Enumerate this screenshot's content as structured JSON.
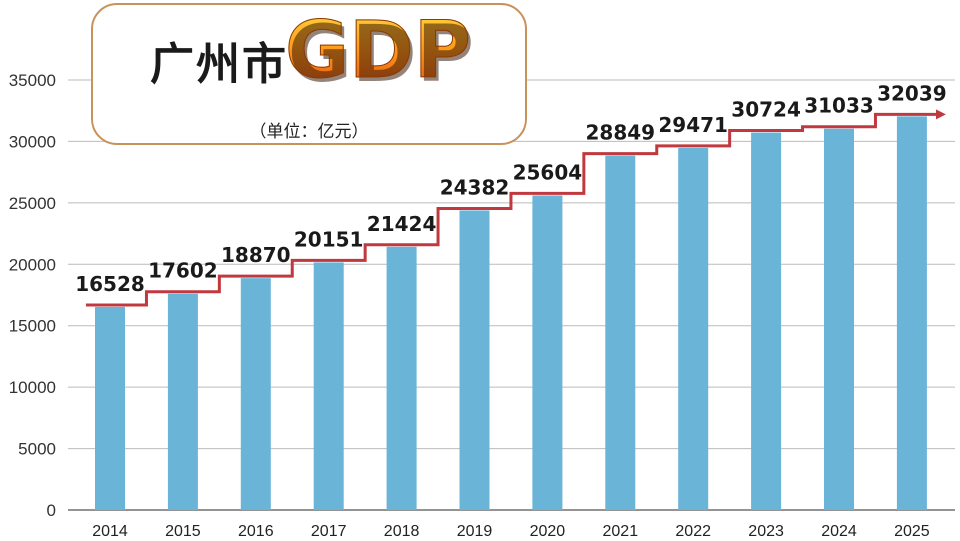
{
  "title": {
    "main": "广州市",
    "highlight": "GDP",
    "unit": "（单位：亿元）"
  },
  "colors": {
    "bar": "#6ab4d8",
    "step_line": "#c0393f",
    "title_border": "#c8925a"
  },
  "chart_data": {
    "type": "bar",
    "title": "广州市GDP",
    "unit": "亿元",
    "categories": [
      "2014",
      "2015",
      "2016",
      "2017",
      "2018",
      "2019",
      "2020",
      "2021",
      "2022",
      "2023",
      "2024",
      "2025"
    ],
    "values": [
      16528,
      17602,
      18870,
      20151,
      21424,
      24382,
      25604,
      28849,
      29471,
      30724,
      31033,
      32039
    ],
    "data_labels": [
      "16528",
      "17602",
      "18870",
      "20151",
      "21424",
      "24382",
      "25604",
      "28849",
      "29471",
      "30724",
      "31033",
      "32039"
    ],
    "ylim": [
      0,
      35000
    ],
    "yticks": [
      0,
      5000,
      10000,
      15000,
      20000,
      25000,
      30000,
      35000
    ],
    "ytick_labels": [
      "0",
      "5000",
      "10000",
      "15000",
      "20000",
      "25000",
      "30000",
      "35000"
    ],
    "grid": true,
    "overlay": "step line with arrow"
  }
}
